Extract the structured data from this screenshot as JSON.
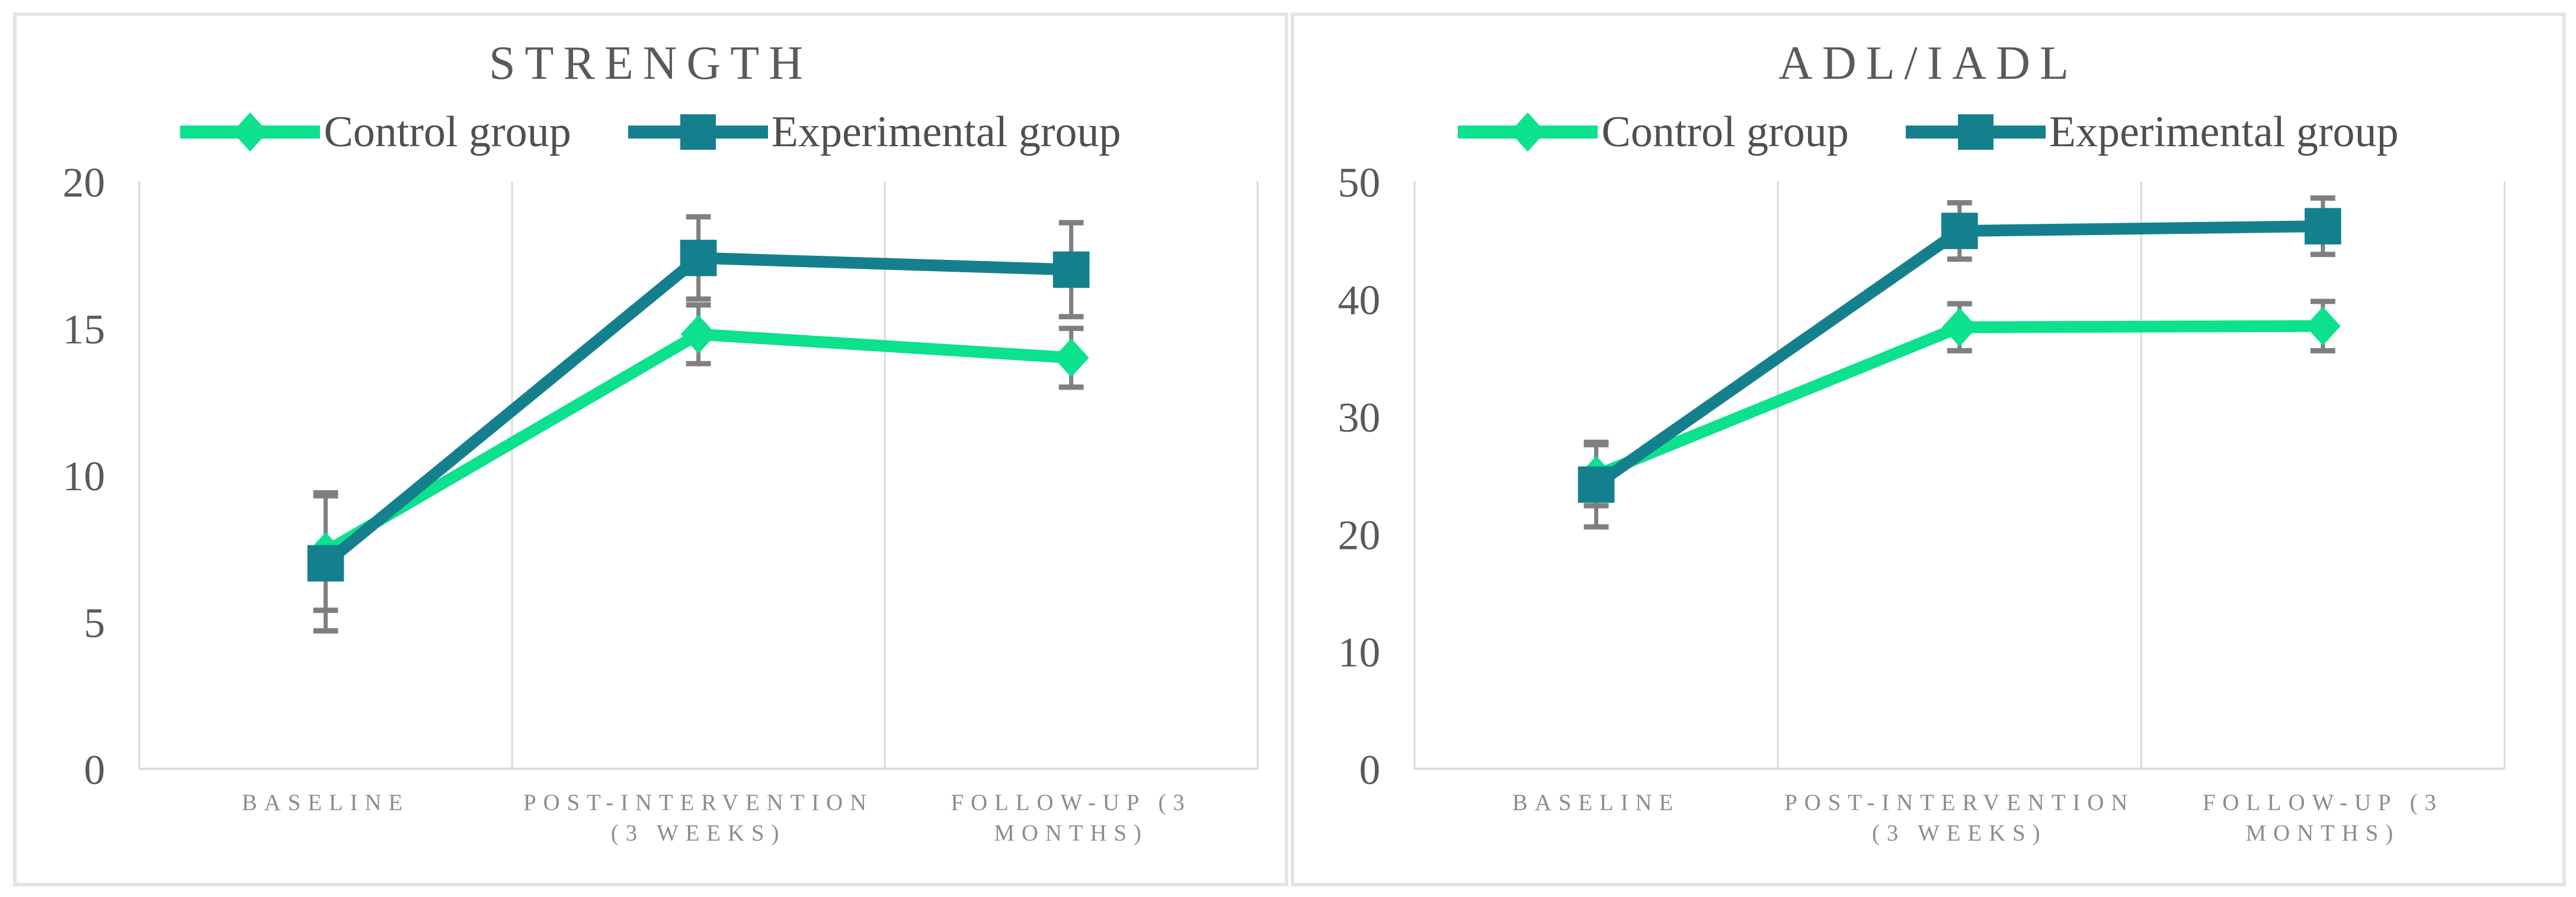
{
  "figure": {
    "description": "Two-panel line chart figure comparing Control and Experimental groups across three time points with error bars",
    "background_color": "#ffffff",
    "panel_border_color": "#e4e4e4",
    "gridline_color": "#d9d9d9",
    "axis_line_color": "#d9d9d9",
    "title_color": "#5a5a5a",
    "ytick_color": "#595959",
    "xlabel_color": "#8c8c8c",
    "legend_text_color": "#4f4f4f"
  },
  "chart_data": [
    {
      "type": "line",
      "title": "STRENGTH",
      "xlabel": "",
      "ylabel": "",
      "ylim": [
        0,
        20
      ],
      "yticks": [
        0,
        5,
        10,
        15,
        20
      ],
      "grid": "vertical category boundaries only",
      "legend_position": "top",
      "error_bar_color": "#7f7f7f",
      "categories": [
        "BASELINE",
        "POST-INTERVENTION (3 WEEKS)",
        "FOLLOW-UP (3 MONTHS)"
      ],
      "category_label_lines": [
        [
          "BASELINE"
        ],
        [
          "POST-INTERVENTION",
          "(3 WEEKS)"
        ],
        [
          "FOLLOW-UP (3",
          "MONTHS)"
        ]
      ],
      "series": [
        {
          "name": "Control group",
          "marker": "diamond",
          "color": "#0ce18e",
          "values": [
            7.4,
            14.8,
            14.0
          ],
          "error": [
            2.0,
            1.0,
            1.0
          ]
        },
        {
          "name": "Experimental group",
          "marker": "square",
          "color": "#15808d",
          "values": [
            7.0,
            17.4,
            17.0
          ],
          "error": [
            2.3,
            1.4,
            1.6
          ]
        }
      ]
    },
    {
      "type": "line",
      "title": "ADL/IADL",
      "xlabel": "",
      "ylabel": "",
      "ylim": [
        0,
        50
      ],
      "yticks": [
        0,
        10,
        20,
        30,
        40,
        50
      ],
      "grid": "vertical category boundaries only",
      "legend_position": "top",
      "error_bar_color": "#7f7f7f",
      "categories": [
        "BASELINE",
        "POST-INTERVENTION (3 WEEKS)",
        "FOLLOW-UP (3 MONTHS)"
      ],
      "category_label_lines": [
        [
          "BASELINE"
        ],
        [
          "POST-INTERVENTION",
          "(3 WEEKS)"
        ],
        [
          "FOLLOW-UP (3",
          "MONTHS)"
        ]
      ],
      "series": [
        {
          "name": "Control group",
          "marker": "diamond",
          "color": "#0ce18e",
          "values": [
            25.0,
            37.6,
            37.7
          ],
          "error": [
            2.6,
            2.0,
            2.1
          ]
        },
        {
          "name": "Experimental group",
          "marker": "square",
          "color": "#15808d",
          "values": [
            24.2,
            45.8,
            46.2
          ],
          "error": [
            3.6,
            2.4,
            2.4
          ]
        }
      ]
    }
  ]
}
